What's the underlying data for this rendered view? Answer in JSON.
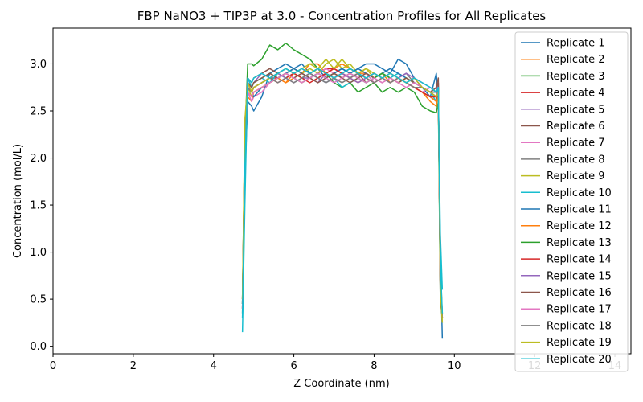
{
  "chart_data": {
    "type": "line",
    "title": "FBP NaNO3 + TIP3P at 3.0 - Concentration Profiles for All Replicates",
    "xlabel": "Z Coordinate (nm)",
    "ylabel": "Concentration (mol/L)",
    "xlim": [
      0,
      14.4
    ],
    "ylim": [
      -0.08,
      3.38
    ],
    "xticks": [
      "0",
      "2",
      "4",
      "6",
      "8",
      "10",
      "12",
      "14"
    ],
    "yticks": [
      "0.0",
      "0.5",
      "1.0",
      "1.5",
      "2.0",
      "2.5",
      "3.0"
    ],
    "reference_line": {
      "y": 3.0,
      "style": "dashed",
      "color": "#808080"
    },
    "grid": false,
    "legend_position": "upper right",
    "x_profile": [
      4.72,
      4.78,
      4.85,
      4.95,
      5.0,
      5.2,
      5.4,
      5.6,
      5.8,
      6.0,
      6.2,
      6.4,
      6.6,
      6.8,
      7.0,
      7.2,
      7.4,
      7.6,
      7.8,
      8.0,
      8.2,
      8.4,
      8.6,
      8.8,
      9.0,
      9.2,
      9.4,
      9.55,
      9.6,
      9.65,
      9.7
    ],
    "series": [
      {
        "name": "Replicate 1",
        "color": "#1f77b4",
        "values": [
          0.3,
          1.8,
          2.6,
          2.55,
          2.5,
          2.65,
          2.9,
          2.95,
          3.0,
          2.95,
          3.0,
          2.9,
          2.95,
          2.85,
          2.9,
          2.95,
          2.9,
          2.95,
          3.0,
          3.0,
          2.95,
          2.9,
          3.05,
          3.0,
          2.85,
          2.75,
          2.65,
          2.9,
          2.6,
          1.0,
          0.08
        ]
      },
      {
        "name": "Replicate 2",
        "color": "#ff7f0e",
        "values": [
          0.4,
          2.0,
          2.65,
          2.6,
          2.7,
          2.75,
          2.8,
          2.85,
          2.8,
          2.85,
          2.9,
          3.0,
          3.0,
          2.9,
          2.95,
          3.0,
          2.95,
          2.9,
          2.9,
          2.85,
          2.9,
          2.8,
          2.85,
          2.8,
          2.75,
          2.7,
          2.6,
          2.55,
          2.7,
          0.9,
          0.3
        ]
      },
      {
        "name": "Replicate 3",
        "color": "#2ca02c",
        "values": [
          0.35,
          2.2,
          3.0,
          3.0,
          2.98,
          3.05,
          3.2,
          3.15,
          3.22,
          3.15,
          3.1,
          3.05,
          2.95,
          2.9,
          2.8,
          2.75,
          2.8,
          2.7,
          2.75,
          2.8,
          2.7,
          2.75,
          2.7,
          2.75,
          2.7,
          2.55,
          2.5,
          2.48,
          2.6,
          0.5,
          0.3
        ]
      },
      {
        "name": "Replicate 4",
        "color": "#d62728",
        "values": [
          0.4,
          2.1,
          2.8,
          2.7,
          2.75,
          2.8,
          2.85,
          2.85,
          2.9,
          2.85,
          2.8,
          2.85,
          2.9,
          2.95,
          2.95,
          2.9,
          2.95,
          2.9,
          2.85,
          2.9,
          2.85,
          2.8,
          2.85,
          2.8,
          2.75,
          2.7,
          2.65,
          2.6,
          2.7,
          0.6,
          0.3
        ]
      },
      {
        "name": "Replicate 5",
        "color": "#9467bd",
        "values": [
          0.45,
          2.2,
          2.85,
          2.75,
          2.8,
          2.9,
          2.85,
          2.9,
          2.95,
          2.9,
          2.85,
          2.85,
          2.8,
          2.9,
          2.85,
          2.9,
          2.85,
          2.8,
          2.85,
          2.9,
          2.85,
          2.9,
          2.85,
          2.8,
          2.85,
          2.75,
          2.7,
          2.65,
          2.8,
          0.7,
          0.3
        ]
      },
      {
        "name": "Replicate 6",
        "color": "#8c564b",
        "values": [
          0.5,
          2.3,
          2.85,
          2.8,
          2.85,
          2.9,
          2.95,
          2.9,
          2.85,
          2.9,
          2.95,
          2.9,
          2.85,
          2.8,
          2.85,
          2.9,
          2.85,
          2.9,
          2.8,
          2.85,
          2.9,
          2.85,
          2.8,
          2.85,
          2.8,
          2.75,
          2.7,
          2.75,
          2.85,
          0.6,
          0.3
        ]
      },
      {
        "name": "Replicate 7",
        "color": "#e377c2",
        "values": [
          0.4,
          2.1,
          2.7,
          2.6,
          2.65,
          2.7,
          2.8,
          2.85,
          2.9,
          2.95,
          2.9,
          2.85,
          2.9,
          2.95,
          2.9,
          2.85,
          2.9,
          2.85,
          2.9,
          2.8,
          2.85,
          2.9,
          2.85,
          2.8,
          2.75,
          2.7,
          2.75,
          2.7,
          2.75,
          0.7,
          0.35
        ]
      },
      {
        "name": "Replicate 8",
        "color": "#7f7f7f",
        "values": [
          0.45,
          2.2,
          2.75,
          2.7,
          2.75,
          2.8,
          2.85,
          2.9,
          2.85,
          2.8,
          2.85,
          2.9,
          2.85,
          2.9,
          2.85,
          2.8,
          2.85,
          2.9,
          2.85,
          2.8,
          2.85,
          2.8,
          2.85,
          2.9,
          2.8,
          2.75,
          2.7,
          2.7,
          2.75,
          0.8,
          0.35
        ]
      },
      {
        "name": "Replicate 9",
        "color": "#bcbd22",
        "values": [
          0.5,
          2.4,
          2.75,
          2.65,
          2.7,
          2.75,
          2.8,
          2.85,
          2.9,
          2.95,
          2.9,
          2.95,
          2.9,
          3.0,
          3.05,
          2.95,
          3.0,
          2.9,
          2.95,
          2.85,
          2.9,
          2.85,
          2.8,
          2.85,
          2.8,
          2.75,
          2.7,
          2.65,
          2.7,
          0.9,
          0.25
        ]
      },
      {
        "name": "Replicate 10",
        "color": "#17becf",
        "values": [
          0.15,
          1.5,
          2.85,
          2.75,
          2.8,
          2.85,
          2.8,
          2.9,
          2.85,
          2.9,
          2.85,
          2.9,
          2.85,
          2.8,
          2.85,
          2.75,
          2.8,
          2.85,
          2.8,
          2.85,
          2.9,
          2.85,
          2.9,
          2.85,
          2.8,
          2.75,
          2.7,
          2.6,
          2.65,
          1.2,
          0.6
        ]
      },
      {
        "name": "Replicate 11",
        "color": "#1f77b4",
        "values": [
          0.35,
          2.0,
          2.75,
          2.7,
          2.65,
          2.75,
          2.8,
          2.85,
          2.9,
          2.95,
          2.9,
          2.85,
          2.9,
          2.85,
          2.9,
          2.95,
          2.9,
          2.95,
          2.9,
          2.85,
          2.9,
          2.95,
          2.9,
          2.85,
          2.8,
          2.75,
          2.7,
          2.65,
          2.7,
          0.7,
          0.3
        ]
      },
      {
        "name": "Replicate 12",
        "color": "#ff7f0e",
        "values": [
          0.4,
          2.1,
          2.7,
          2.65,
          2.7,
          2.75,
          2.8,
          2.85,
          2.8,
          2.9,
          2.85,
          2.9,
          2.95,
          2.9,
          2.85,
          2.9,
          2.85,
          2.8,
          2.85,
          2.9,
          2.85,
          2.8,
          2.85,
          2.8,
          2.75,
          2.7,
          2.65,
          2.6,
          2.65,
          0.8,
          0.3
        ]
      },
      {
        "name": "Replicate 13",
        "color": "#2ca02c",
        "values": [
          0.45,
          2.2,
          2.8,
          2.75,
          2.8,
          2.85,
          2.9,
          2.85,
          2.9,
          2.85,
          2.8,
          2.85,
          2.9,
          2.85,
          2.9,
          2.85,
          2.9,
          2.85,
          2.8,
          2.85,
          2.9,
          2.85,
          2.8,
          2.85,
          2.8,
          2.75,
          2.7,
          2.7,
          2.75,
          0.6,
          0.3
        ]
      },
      {
        "name": "Replicate 14",
        "color": "#d62728",
        "values": [
          0.5,
          2.3,
          2.8,
          2.7,
          2.75,
          2.8,
          2.85,
          2.8,
          2.85,
          2.9,
          2.85,
          2.8,
          2.85,
          2.9,
          2.95,
          2.9,
          2.85,
          2.9,
          2.85,
          2.8,
          2.85,
          2.9,
          2.85,
          2.8,
          2.75,
          2.7,
          2.65,
          2.65,
          2.7,
          0.7,
          0.3
        ]
      },
      {
        "name": "Replicate 15",
        "color": "#9467bd",
        "values": [
          0.4,
          2.0,
          2.75,
          2.7,
          2.75,
          2.8,
          2.85,
          2.9,
          2.85,
          2.8,
          2.85,
          2.9,
          2.85,
          2.8,
          2.85,
          2.9,
          2.85,
          2.8,
          2.85,
          2.9,
          2.85,
          2.8,
          2.85,
          2.9,
          2.85,
          2.8,
          2.75,
          2.7,
          2.8,
          0.6,
          0.3
        ]
      },
      {
        "name": "Replicate 16",
        "color": "#8c564b",
        "values": [
          0.45,
          2.1,
          2.8,
          2.75,
          2.8,
          2.85,
          2.9,
          2.85,
          2.9,
          2.85,
          2.9,
          2.85,
          2.8,
          2.85,
          2.9,
          2.85,
          2.8,
          2.85,
          2.9,
          2.85,
          2.8,
          2.85,
          2.8,
          2.85,
          2.8,
          2.75,
          2.7,
          2.75,
          2.8,
          0.5,
          0.3
        ]
      },
      {
        "name": "Replicate 17",
        "color": "#e377c2",
        "values": [
          0.4,
          2.2,
          2.7,
          2.65,
          2.7,
          2.75,
          2.8,
          2.85,
          2.9,
          2.85,
          2.8,
          2.85,
          2.9,
          2.85,
          2.8,
          2.85,
          2.9,
          2.85,
          2.8,
          2.85,
          2.8,
          2.85,
          2.8,
          2.75,
          2.8,
          2.75,
          2.7,
          2.65,
          2.7,
          0.7,
          0.35
        ]
      },
      {
        "name": "Replicate 18",
        "color": "#7f7f7f",
        "values": [
          0.45,
          2.3,
          2.75,
          2.7,
          2.75,
          2.8,
          2.85,
          2.8,
          2.85,
          2.8,
          2.85,
          2.9,
          2.85,
          2.8,
          2.85,
          2.8,
          2.85,
          2.9,
          2.85,
          2.8,
          2.85,
          2.8,
          2.85,
          2.8,
          2.75,
          2.75,
          2.7,
          2.7,
          2.75,
          0.8,
          0.3
        ]
      },
      {
        "name": "Replicate 19",
        "color": "#bcbd22",
        "values": [
          0.5,
          2.4,
          2.8,
          2.7,
          2.75,
          2.8,
          2.85,
          2.9,
          2.95,
          2.9,
          2.95,
          3.0,
          2.95,
          3.05,
          2.95,
          3.05,
          2.95,
          2.9,
          2.95,
          2.9,
          2.85,
          2.9,
          2.85,
          2.8,
          2.85,
          2.75,
          2.7,
          2.65,
          2.7,
          0.6,
          0.25
        ]
      },
      {
        "name": "Replicate 20",
        "color": "#17becf",
        "values": [
          0.3,
          1.9,
          2.85,
          2.8,
          2.85,
          2.9,
          2.85,
          2.9,
          2.95,
          2.9,
          2.95,
          2.9,
          2.95,
          2.9,
          2.85,
          2.9,
          2.95,
          2.9,
          2.85,
          2.9,
          2.85,
          2.9,
          2.85,
          2.8,
          2.85,
          2.8,
          2.75,
          2.7,
          2.75,
          0.9,
          0.35
        ]
      }
    ]
  }
}
